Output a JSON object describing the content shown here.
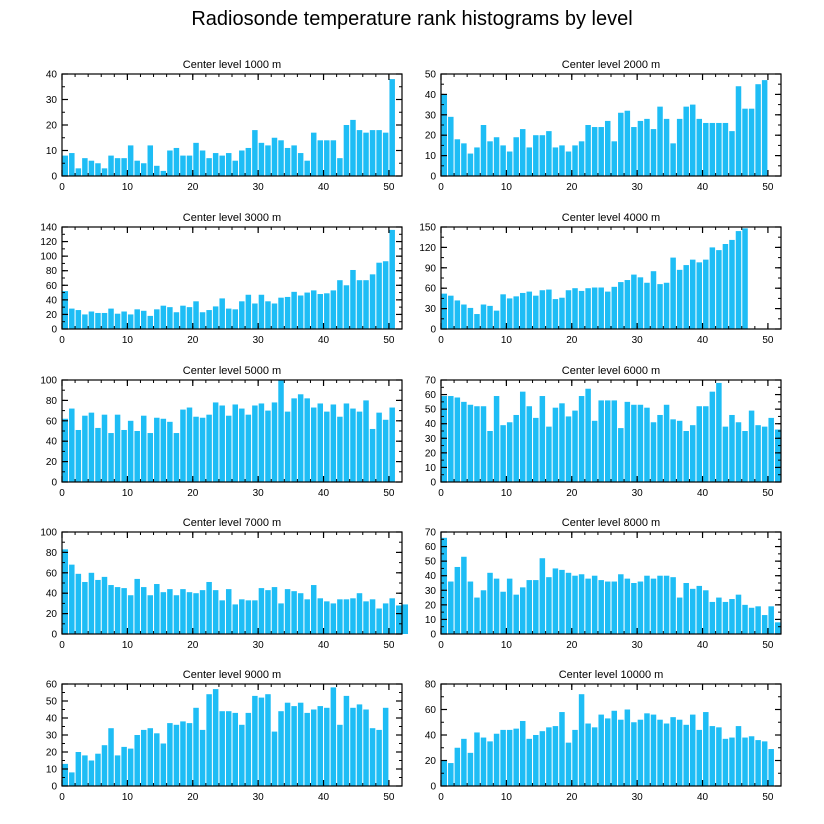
{
  "title": "Radiosonde temperature rank histograms by level",
  "colors": {
    "bar": "#1ebdf5",
    "axis": "#000000"
  },
  "chart_data": [
    {
      "type": "bar",
      "title": "Center level 1000 m",
      "xlim": [
        0,
        52
      ],
      "ylim": [
        0,
        40
      ],
      "xticks": [
        0,
        10,
        20,
        30,
        40,
        50
      ],
      "yticks": [
        0,
        10,
        20,
        30,
        40
      ],
      "values": [
        8,
        9,
        3,
        7,
        6,
        5,
        3,
        8,
        7,
        7,
        12,
        6,
        5,
        12,
        4,
        2,
        10,
        11,
        8,
        8,
        13,
        10,
        7,
        9,
        8,
        9,
        6,
        10,
        11,
        18,
        13,
        12,
        15,
        14,
        11,
        12,
        9,
        6,
        17,
        14,
        14,
        14,
        7,
        20,
        22,
        18,
        17,
        18,
        18,
        17,
        38
      ]
    },
    {
      "type": "bar",
      "title": "Center level 2000 m",
      "xlim": [
        0,
        52
      ],
      "ylim": [
        0,
        50
      ],
      "xticks": [
        0,
        10,
        20,
        30,
        40,
        50
      ],
      "yticks": [
        0,
        10,
        20,
        30,
        40,
        50
      ],
      "values": [
        40,
        29,
        18,
        16,
        11,
        14,
        25,
        17,
        19,
        15,
        12,
        19,
        23,
        14,
        20,
        20,
        22,
        14,
        15,
        12,
        15,
        17,
        25,
        24,
        24,
        27,
        17,
        31,
        32,
        24,
        27,
        28,
        23,
        34,
        28,
        16,
        28,
        34,
        35,
        28,
        26,
        26,
        26,
        26,
        22,
        44,
        33,
        33,
        45,
        47
      ]
    },
    {
      "type": "bar",
      "title": "Center level 3000 m",
      "xlim": [
        0,
        52
      ],
      "ylim": [
        0,
        140
      ],
      "xticks": [
        0,
        10,
        20,
        30,
        40,
        50
      ],
      "yticks": [
        0,
        20,
        40,
        60,
        80,
        100,
        120,
        140
      ],
      "values": [
        52,
        28,
        26,
        20,
        24,
        22,
        22,
        28,
        21,
        24,
        20,
        27,
        25,
        18,
        27,
        32,
        30,
        23,
        32,
        30,
        38,
        23,
        26,
        31,
        42,
        28,
        27,
        38,
        47,
        35,
        47,
        38,
        35,
        43,
        44,
        51,
        46,
        50,
        53,
        48,
        49,
        53,
        67,
        60,
        81,
        67,
        67,
        75,
        91,
        93,
        136
      ]
    },
    {
      "type": "bar",
      "title": "Center level 4000 m",
      "xlim": [
        0,
        52
      ],
      "ylim": [
        0,
        150
      ],
      "xticks": [
        0,
        10,
        20,
        30,
        40,
        50
      ],
      "yticks": [
        0,
        30,
        60,
        90,
        120,
        150
      ],
      "values": [
        52,
        49,
        42,
        36,
        31,
        22,
        36,
        34,
        27,
        51,
        45,
        48,
        53,
        55,
        49,
        57,
        58,
        44,
        46,
        57,
        60,
        56,
        60,
        61,
        61,
        55,
        62,
        69,
        72,
        80,
        76,
        68,
        85,
        66,
        68,
        105,
        87,
        94,
        102,
        98,
        102,
        120,
        116,
        125,
        131,
        144,
        148
      ]
    },
    {
      "type": "bar",
      "title": "Center level 5000 m",
      "xlim": [
        0,
        52
      ],
      "ylim": [
        0,
        100
      ],
      "xticks": [
        0,
        10,
        20,
        30,
        40,
        50
      ],
      "yticks": [
        0,
        20,
        40,
        60,
        80,
        100
      ],
      "values": [
        62,
        72,
        51,
        65,
        68,
        53,
        66,
        48,
        66,
        51,
        60,
        50,
        65,
        48,
        63,
        62,
        59,
        48,
        71,
        73,
        64,
        63,
        66,
        78,
        75,
        65,
        76,
        72,
        66,
        75,
        77,
        70,
        78,
        100,
        69,
        82,
        86,
        82,
        73,
        77,
        69,
        76,
        64,
        77,
        72,
        69,
        80,
        52,
        68,
        61,
        73
      ]
    },
    {
      "type": "bar",
      "title": "Center level 6000 m",
      "xlim": [
        0,
        52
      ],
      "ylim": [
        0,
        70
      ],
      "xticks": [
        0,
        10,
        20,
        30,
        40,
        50
      ],
      "yticks": [
        0,
        10,
        20,
        30,
        40,
        50,
        60,
        70
      ],
      "values": [
        59,
        59,
        58,
        55,
        53,
        52,
        52,
        35,
        59,
        39,
        41,
        46,
        62,
        52,
        44,
        59,
        38,
        51,
        54,
        45,
        49,
        59,
        64,
        42,
        56,
        56,
        56,
        37,
        55,
        53,
        53,
        51,
        41,
        46,
        53,
        43,
        42,
        35,
        39,
        52,
        52,
        62,
        68,
        38,
        46,
        41,
        35,
        49,
        39,
        38,
        44,
        36
      ]
    },
    {
      "type": "bar",
      "title": "Center level 7000 m",
      "xlim": [
        0,
        52
      ],
      "ylim": [
        0,
        100
      ],
      "xticks": [
        0,
        10,
        20,
        30,
        40,
        50
      ],
      "yticks": [
        0,
        20,
        40,
        60,
        80,
        100
      ],
      "values": [
        83,
        68,
        59,
        51,
        60,
        53,
        56,
        48,
        46,
        45,
        38,
        54,
        46,
        38,
        49,
        41,
        44,
        38,
        44,
        41,
        40,
        43,
        51,
        43,
        33,
        44,
        29,
        34,
        33,
        33,
        45,
        43,
        46,
        30,
        44,
        42,
        40,
        34,
        48,
        35,
        32,
        30,
        34,
        34,
        35,
        40,
        32,
        34,
        25,
        30,
        35,
        28,
        29
      ]
    },
    {
      "type": "bar",
      "title": "Center level 8000 m",
      "xlim": [
        0,
        52
      ],
      "ylim": [
        0,
        70
      ],
      "xticks": [
        0,
        10,
        20,
        30,
        40,
        50
      ],
      "yticks": [
        0,
        10,
        20,
        30,
        40,
        50,
        60,
        70
      ],
      "values": [
        66,
        36,
        46,
        53,
        36,
        25,
        30,
        42,
        38,
        29,
        38,
        27,
        32,
        37,
        37,
        52,
        39,
        45,
        44,
        42,
        40,
        41,
        38,
        40,
        37,
        36,
        36,
        41,
        38,
        35,
        36,
        40,
        38,
        40,
        40,
        39,
        25,
        35,
        31,
        33,
        30,
        22,
        25,
        22,
        24,
        27,
        20,
        18,
        19,
        13,
        19,
        8
      ]
    },
    {
      "type": "bar",
      "title": "Center level 9000 m",
      "xlim": [
        0,
        52
      ],
      "ylim": [
        0,
        60
      ],
      "xticks": [
        0,
        10,
        20,
        30,
        40,
        50
      ],
      "yticks": [
        0,
        10,
        20,
        30,
        40,
        50,
        60
      ],
      "values": [
        13,
        8,
        20,
        18,
        15,
        19,
        24,
        34,
        18,
        23,
        22,
        30,
        33,
        34,
        31,
        25,
        37,
        36,
        38,
        37,
        46,
        33,
        54,
        57,
        44,
        44,
        43,
        36,
        43,
        53,
        52,
        54,
        32,
        44,
        49,
        47,
        49,
        43,
        45,
        47,
        46,
        58,
        36,
        53,
        46,
        48,
        45,
        34,
        33,
        46
      ]
    },
    {
      "type": "bar",
      "title": "Center level 10000 m",
      "xlim": [
        0,
        52
      ],
      "ylim": [
        0,
        80
      ],
      "xticks": [
        0,
        10,
        20,
        30,
        40,
        50
      ],
      "yticks": [
        0,
        20,
        40,
        60,
        80
      ],
      "values": [
        20,
        18,
        30,
        37,
        26,
        42,
        38,
        35,
        41,
        44,
        44,
        45,
        51,
        37,
        40,
        43,
        46,
        47,
        58,
        34,
        44,
        72,
        49,
        46,
        56,
        53,
        59,
        52,
        60,
        50,
        52,
        57,
        56,
        52,
        49,
        54,
        52,
        48,
        56,
        44,
        58,
        47,
        46,
        37,
        38,
        47,
        38,
        39,
        36,
        35,
        29
      ]
    }
  ]
}
